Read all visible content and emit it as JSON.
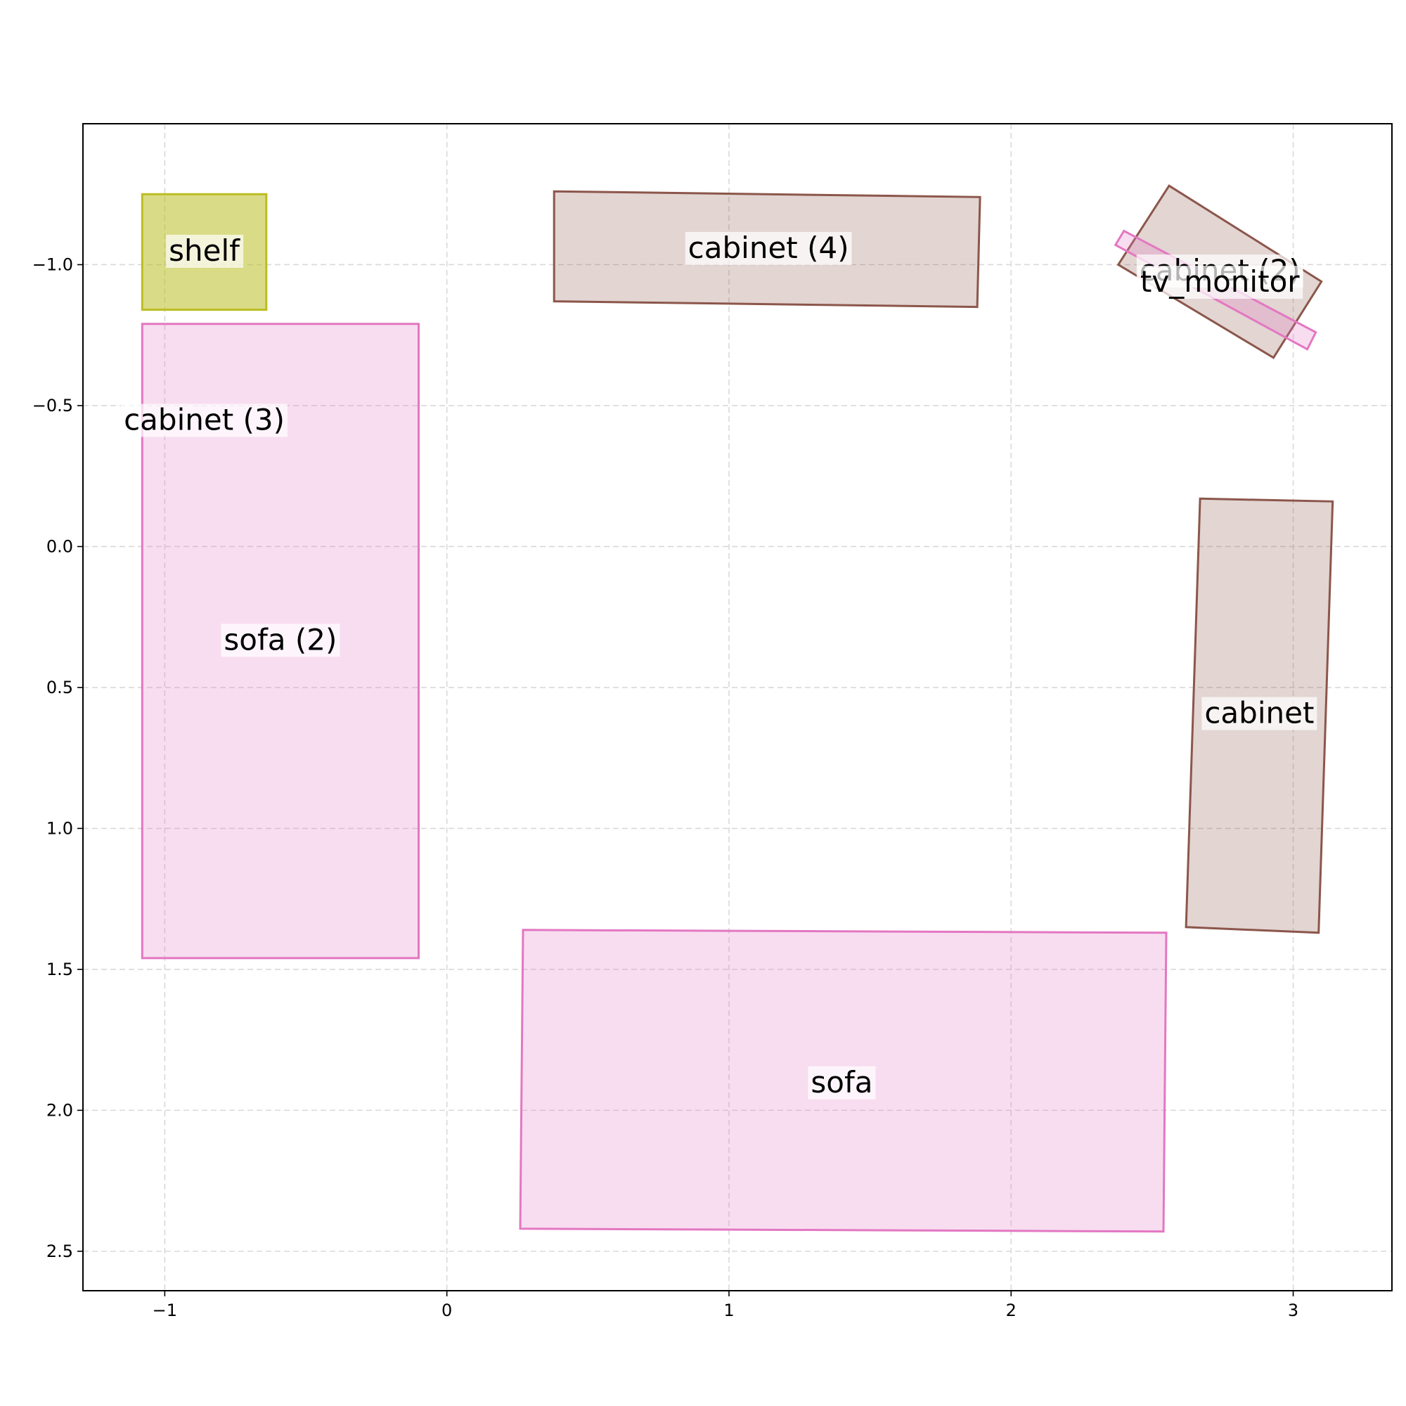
{
  "chart_data": {
    "type": "floorplan",
    "xlim": [
      -1.29,
      3.35
    ],
    "ylim": [
      2.64,
      -1.5
    ],
    "x_ticks": [
      {
        "value": -1,
        "label": "−1"
      },
      {
        "value": 0,
        "label": "0"
      },
      {
        "value": 1,
        "label": "1"
      },
      {
        "value": 2,
        "label": "2"
      },
      {
        "value": 3,
        "label": "3"
      }
    ],
    "y_ticks": [
      {
        "value": -1.0,
        "label": "−1.0"
      },
      {
        "value": -0.5,
        "label": "−0.5"
      },
      {
        "value": 0.0,
        "label": "0.0"
      },
      {
        "value": 0.5,
        "label": "0.5"
      },
      {
        "value": 1.0,
        "label": "1.0"
      },
      {
        "value": 1.5,
        "label": "1.5"
      },
      {
        "value": 2.0,
        "label": "2.0"
      },
      {
        "value": 2.5,
        "label": "2.5"
      }
    ],
    "grid": true,
    "objects": [
      {
        "id": "shelf",
        "label": "shelf",
        "stroke": "#bcbd22",
        "fill": "#bcbd22",
        "fill_opacity": 0.55,
        "corners": [
          [
            -1.08,
            -1.25
          ],
          [
            -0.64,
            -1.25
          ],
          [
            -0.64,
            -0.84
          ],
          [
            -1.08,
            -0.84
          ]
        ],
        "label_pos": [
          -0.86,
          -1.05
        ]
      },
      {
        "id": "cabinet-4",
        "label": "cabinet (4)",
        "stroke": "#8c564b",
        "fill": "#8c564b",
        "fill_opacity": 0.25,
        "corners": [
          [
            0.38,
            -1.26
          ],
          [
            1.89,
            -1.24
          ],
          [
            1.88,
            -0.85
          ],
          [
            0.38,
            -0.87
          ]
        ],
        "label_pos": [
          1.14,
          -1.06
        ]
      },
      {
        "id": "cabinet-2",
        "label": "cabinet (2)",
        "stroke": "#8c564b",
        "fill": "#8c564b",
        "fill_opacity": 0.25,
        "corners": [
          [
            2.56,
            -1.28
          ],
          [
            3.1,
            -0.94
          ],
          [
            2.93,
            -0.67
          ],
          [
            2.38,
            -1.0
          ]
        ],
        "label_pos": [
          2.74,
          -0.98
        ]
      },
      {
        "id": "tv-monitor",
        "label": "tv_monitor",
        "stroke": "#e377c2",
        "fill": "#e377c2",
        "fill_opacity": 0.25,
        "corners": [
          [
            2.4,
            -1.12
          ],
          [
            3.08,
            -0.76
          ],
          [
            3.05,
            -0.7
          ],
          [
            2.37,
            -1.07
          ]
        ],
        "label_pos": [
          2.74,
          -0.94
        ]
      },
      {
        "id": "cabinet-3",
        "label": "cabinet (3)",
        "stroke": "#8c564b",
        "fill": "#8c564b",
        "fill_opacity": 0.0,
        "corners": [],
        "label_pos": [
          -0.86,
          -0.45
        ]
      },
      {
        "id": "sofa-2",
        "label": "sofa (2)",
        "stroke": "#e377c2",
        "fill": "#e377c2",
        "fill_opacity": 0.25,
        "corners": [
          [
            -1.08,
            -0.79
          ],
          [
            -0.1,
            -0.79
          ],
          [
            -0.1,
            1.46
          ],
          [
            -1.08,
            1.46
          ]
        ],
        "label_pos": [
          -0.59,
          0.33
        ]
      },
      {
        "id": "cabinet-1",
        "label": "cabinet",
        "stroke": "#8c564b",
        "fill": "#8c564b",
        "fill_opacity": 0.25,
        "corners": [
          [
            2.67,
            -0.17
          ],
          [
            3.14,
            -0.16
          ],
          [
            3.09,
            1.37
          ],
          [
            2.62,
            1.35
          ]
        ],
        "label_pos": [
          2.88,
          0.59
        ]
      },
      {
        "id": "sofa-1",
        "label": "sofa",
        "stroke": "#e377c2",
        "fill": "#e377c2",
        "fill_opacity": 0.25,
        "corners": [
          [
            0.27,
            1.36
          ],
          [
            2.55,
            1.37
          ],
          [
            2.54,
            2.43
          ],
          [
            0.26,
            2.42
          ]
        ],
        "label_pos": [
          1.4,
          1.9
        ]
      }
    ]
  }
}
